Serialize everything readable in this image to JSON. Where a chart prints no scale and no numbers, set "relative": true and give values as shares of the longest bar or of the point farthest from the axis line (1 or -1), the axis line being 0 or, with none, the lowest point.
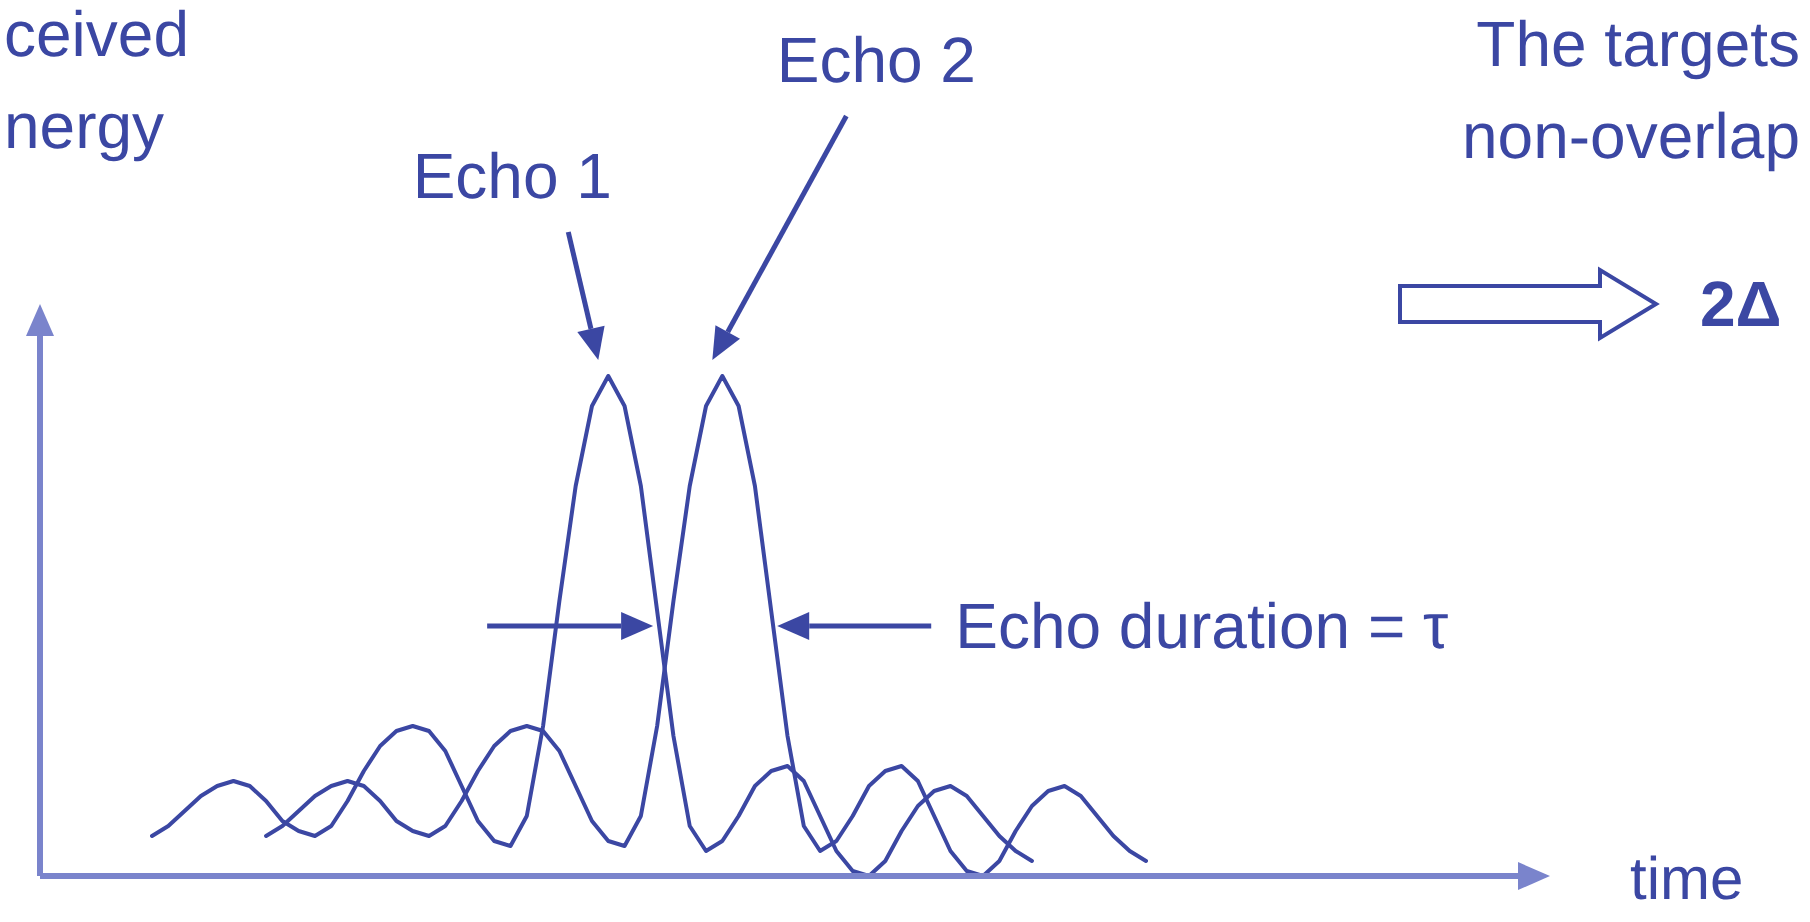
{
  "chart_data": {
    "type": "line",
    "relative": true,
    "ylabel": "ceived\nnergy",
    "grid": false,
    "line_style": "solid",
    "categories": [
      null,
      null,
      null,
      null,
      null,
      null,
      null,
      null,
      null,
      null,
      null,
      null,
      null,
      null,
      null,
      null,
      null,
      null,
      null,
      null,
      null,
      null,
      null,
      null,
      null,
      null,
      null,
      null,
      null,
      null,
      null,
      null,
      null,
      null,
      null,
      null,
      null,
      null,
      null,
      null,
      null,
      null,
      null,
      null,
      null,
      null,
      null,
      null,
      null,
      null,
      null,
      null,
      null,
      null,
      null,
      null,
      null,
      null,
      null,
      null,
      null,
      null
    ],
    "series": [
      {
        "color": "#3b47a3",
        "values": [
          0.08,
          0.1,
          0.13,
          0.16,
          0.18,
          0.19,
          0.18,
          0.15,
          0.11,
          0.09,
          0.08,
          0.1,
          0.15,
          0.21,
          0.26,
          0.29,
          0.3,
          0.29,
          0.25,
          0.18,
          0.11,
          0.07,
          0.06,
          0.12,
          0.3,
          0.55,
          0.78,
          0.94,
          1,
          0.94,
          0.78,
          0.53,
          0.28,
          0.1,
          0.05,
          0.07,
          0.12,
          0.18,
          0.21,
          0.22,
          0.19,
          0.12,
          0.05,
          0.01,
          0,
          0.03,
          0.09,
          0.14,
          0.17,
          0.18,
          0.16,
          0.12,
          0.08,
          0.05,
          0.03,
          null,
          null,
          null,
          null,
          null,
          null,
          null
        ]
      },
      {
        "color": "#3b47a3",
        "values": [
          null,
          null,
          null,
          null,
          null,
          null,
          null,
          0.08,
          0.1,
          0.13,
          0.16,
          0.18,
          0.19,
          0.18,
          0.15,
          0.11,
          0.09,
          0.08,
          0.1,
          0.15,
          0.21,
          0.26,
          0.29,
          0.3,
          0.29,
          0.25,
          0.18,
          0.11,
          0.07,
          0.06,
          0.12,
          0.3,
          0.55,
          0.78,
          0.94,
          1,
          0.94,
          0.78,
          0.53,
          0.28,
          0.1,
          0.05,
          0.07,
          0.12,
          0.18,
          0.21,
          0.22,
          0.19,
          0.12,
          0.05,
          0.01,
          0,
          0.03,
          0.09,
          0.14,
          0.17,
          0.18,
          0.16,
          0.12,
          0.08,
          0.05,
          0.03
        ]
      }
    ],
    "annotations": [
      "Echo 1",
      "Echo 2",
      "Echo duration = τ",
      "The targets\nnon-overlap",
      "2Δ",
      "time"
    ]
  }
}
